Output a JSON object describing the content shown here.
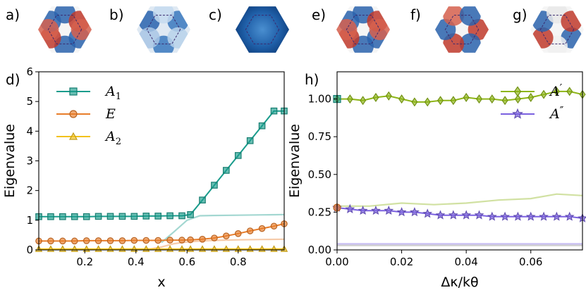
{
  "insets": [
    {
      "tag": "a)",
      "pattern": "a1-lobes"
    },
    {
      "tag": "b)",
      "pattern": "e-lobes"
    },
    {
      "tag": "c)",
      "pattern": "a2-radial"
    },
    {
      "tag": "e)",
      "pattern": "a1-lobes"
    },
    {
      "tag": "f)",
      "pattern": "a1-lobes-alt"
    },
    {
      "tag": "g)",
      "pattern": "a1-lobes-rot"
    }
  ],
  "chart_data": [
    {
      "panel": "d)",
      "type": "line",
      "xlabel": "x",
      "ylabel": "Eigenvalue",
      "xlim": [
        0.02,
        0.98
      ],
      "ylim": [
        0,
        6
      ],
      "xticks": [
        "0.2",
        "0.4",
        "0.6",
        "0.8"
      ],
      "yticks": [
        "0",
        "1",
        "2",
        "3",
        "4",
        "5",
        "6"
      ],
      "legend_position": "top-left",
      "series": [
        {
          "name": "A₁",
          "symbol": "A",
          "sub": "1",
          "color": "#1a9c8c",
          "marker": "square",
          "x": [
            0.02,
            0.0667,
            0.1133,
            0.16,
            0.2067,
            0.2533,
            0.3,
            0.3467,
            0.3933,
            0.44,
            0.4867,
            0.5333,
            0.58,
            0.6133,
            0.66,
            0.7067,
            0.7533,
            0.8,
            0.8467,
            0.8933,
            0.94,
            0.98
          ],
          "values": [
            1.12,
            1.12,
            1.12,
            1.12,
            1.12,
            1.13,
            1.13,
            1.13,
            1.13,
            1.14,
            1.14,
            1.15,
            1.15,
            1.19,
            1.68,
            2.18,
            2.68,
            3.18,
            3.68,
            4.18,
            4.68,
            4.68
          ]
        },
        {
          "name": "E",
          "symbol": "E",
          "sub": "",
          "color": "#e87d2a",
          "marker": "circle",
          "x": [
            0.02,
            0.0667,
            0.1133,
            0.16,
            0.2067,
            0.2533,
            0.3,
            0.3467,
            0.3933,
            0.44,
            0.4867,
            0.5333,
            0.58,
            0.6133,
            0.66,
            0.7067,
            0.7533,
            0.8,
            0.8467,
            0.8933,
            0.94,
            0.98
          ],
          "values": [
            0.3,
            0.3,
            0.3,
            0.3,
            0.31,
            0.31,
            0.31,
            0.31,
            0.32,
            0.32,
            0.32,
            0.33,
            0.33,
            0.34,
            0.36,
            0.4,
            0.47,
            0.55,
            0.64,
            0.72,
            0.8,
            0.88
          ]
        },
        {
          "name": "A₂",
          "symbol": "A",
          "sub": "2",
          "color": "#f2c21b",
          "marker": "triangle",
          "x": [
            0.02,
            0.0667,
            0.1133,
            0.16,
            0.2067,
            0.2533,
            0.3,
            0.3467,
            0.3933,
            0.44,
            0.4867,
            0.5333,
            0.58,
            0.6133,
            0.66,
            0.7067,
            0.7533,
            0.8,
            0.8467,
            0.8933,
            0.94,
            0.98
          ],
          "values": [
            0.03,
            0.03,
            0.03,
            0.03,
            0.03,
            0.03,
            0.03,
            0.03,
            0.03,
            0.03,
            0.03,
            0.03,
            0.03,
            0.03,
            0.03,
            0.03,
            0.03,
            0.03,
            0.03,
            0.03,
            0.03,
            0.03
          ]
        }
      ],
      "background_curves": [
        {
          "color": "#1a9c8c",
          "x": [
            0.5,
            0.55,
            0.6,
            0.65,
            0.7,
            0.8,
            0.9,
            0.98
          ],
          "values": [
            0.25,
            0.62,
            1.0,
            1.15,
            1.16,
            1.17,
            1.18,
            1.19
          ]
        },
        {
          "color": "#e87d2a",
          "x": [
            0.44,
            0.5,
            0.55,
            0.6,
            0.65,
            0.7,
            0.8,
            0.9,
            0.98
          ],
          "values": [
            0.0,
            0.1,
            0.21,
            0.27,
            0.3,
            0.32,
            0.34,
            0.35,
            0.36
          ]
        }
      ]
    },
    {
      "panel": "h)",
      "type": "line",
      "xlabel": "Δκ/kθ",
      "ylabel": "Eigenvalue",
      "xlim": [
        0.0,
        0.076
      ],
      "ylim": [
        0.0,
        1.18
      ],
      "xticks": [
        "0.00",
        "0.02",
        "0.04",
        "0.06"
      ],
      "yticks": [
        "0.00",
        "0.25",
        "0.50",
        "0.75",
        "1.00"
      ],
      "legend_position": "top-right",
      "series": [
        {
          "name": "A′",
          "symbol": "A",
          "sup": "′",
          "color": "#8db517",
          "marker": "diamond",
          "x": [
            0.0,
            0.004,
            0.008,
            0.012,
            0.016,
            0.02,
            0.024,
            0.028,
            0.032,
            0.036,
            0.04,
            0.044,
            0.048,
            0.052,
            0.056,
            0.06,
            0.064,
            0.068,
            0.072,
            0.076
          ],
          "values": [
            1.0,
            1.0,
            0.99,
            1.01,
            1.02,
            1.0,
            0.98,
            0.98,
            0.99,
            0.99,
            1.01,
            1.0,
            1.0,
            0.99,
            1.0,
            1.01,
            1.03,
            1.05,
            1.05,
            1.03
          ]
        },
        {
          "name": "A″",
          "symbol": "A",
          "sup": "″",
          "color": "#7b61e0",
          "marker": "star",
          "x": [
            0.0,
            0.004,
            0.008,
            0.012,
            0.016,
            0.02,
            0.024,
            0.028,
            0.032,
            0.036,
            0.04,
            0.044,
            0.048,
            0.052,
            0.056,
            0.06,
            0.064,
            0.068,
            0.072,
            0.076
          ],
          "values": [
            0.28,
            0.27,
            0.26,
            0.26,
            0.26,
            0.25,
            0.25,
            0.24,
            0.23,
            0.23,
            0.23,
            0.23,
            0.22,
            0.22,
            0.22,
            0.22,
            0.22,
            0.22,
            0.22,
            0.21
          ]
        }
      ],
      "background_curves": [
        {
          "color": "#8db517",
          "x": [
            0.0,
            0.01,
            0.02,
            0.03,
            0.04,
            0.05,
            0.06,
            0.068,
            0.076
          ],
          "values": [
            0.29,
            0.29,
            0.31,
            0.3,
            0.31,
            0.33,
            0.34,
            0.37,
            0.36
          ]
        },
        {
          "color": "#7b61e0",
          "x": [
            0.0,
            0.02,
            0.04,
            0.06,
            0.076
          ],
          "values": [
            0.04,
            0.04,
            0.04,
            0.04,
            0.04
          ]
        },
        {
          "color": "#888888",
          "x": [
            0.0,
            0.02,
            0.04,
            0.06,
            0.076
          ],
          "values": [
            0.03,
            0.03,
            0.03,
            0.03,
            0.03
          ]
        }
      ],
      "start_markers": [
        {
          "x": 0.0,
          "value": 1.0,
          "color": "#1a9c8c",
          "marker": "square"
        },
        {
          "x": 0.0,
          "value": 0.28,
          "color": "#e87d2a",
          "marker": "circle"
        }
      ]
    }
  ]
}
